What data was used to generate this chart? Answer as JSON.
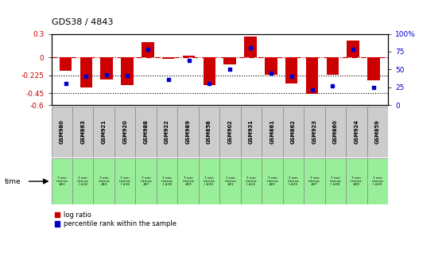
{
  "title": "GDS38 / 4843",
  "samples": [
    "GSM980",
    "GSM863",
    "GSM921",
    "GSM920",
    "GSM988",
    "GSM922",
    "GSM989",
    "GSM858",
    "GSM902",
    "GSM931",
    "GSM861",
    "GSM862",
    "GSM923",
    "GSM860",
    "GSM924",
    "GSM859"
  ],
  "time_labels": [
    "7 min\ninterva\n#13",
    "7 min\ninterva\nl #14",
    "7 min\ninterva\n#15",
    "7 min\ninterva\nl #16",
    "7 min\ninterva\n#17",
    "7 min\ninterva\nl #18",
    "7 min\ninterva\n#19",
    "7 min\ninterva\nl #20",
    "7 min\ninterva\n#21",
    "7 min\ninterva\nl #22",
    "7 min\ninterva\n#23",
    "7 min\ninterva\nl #25",
    "7 min\ninterva\n#27",
    "7 min\ninterva\nl #28",
    "7 min\ninterva\n#29",
    "7 min\ninterva\nl #30"
  ],
  "log_ratio": [
    -0.17,
    -0.38,
    -0.28,
    -0.35,
    0.2,
    -0.02,
    0.02,
    -0.35,
    -0.09,
    0.27,
    -0.22,
    -0.33,
    -0.46,
    -0.22,
    0.22,
    -0.29
  ],
  "percentile": [
    30,
    40,
    43,
    42,
    78,
    36,
    63,
    30,
    50,
    80,
    45,
    40,
    22,
    27,
    78,
    25
  ],
  "bar_color": "#cc0000",
  "dot_color": "#0000cc",
  "ylim_left": [
    -0.6,
    0.3
  ],
  "ylim_right": [
    0,
    100
  ],
  "yticks_left": [
    0.3,
    0,
    -0.225,
    -0.45,
    -0.6
  ],
  "yticks_right": [
    100,
    75,
    50,
    25,
    0
  ],
  "hline_zero": 0,
  "dotted_lines": [
    -0.225,
    -0.45
  ],
  "background_color": "#ffffff",
  "sample_bg_gray": "#cccccc",
  "time_bg_green": "#99ee99"
}
